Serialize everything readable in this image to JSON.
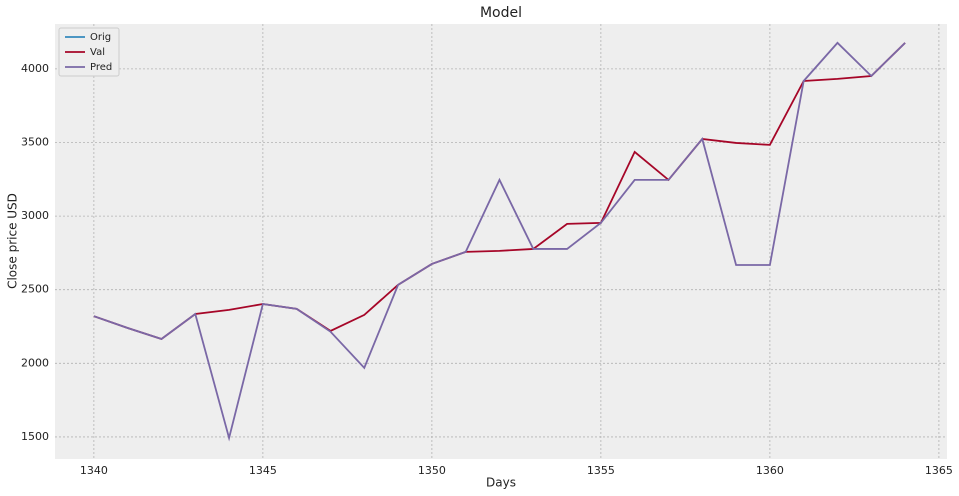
{
  "chart_data": {
    "type": "line",
    "title": "Model",
    "x_label": "Days",
    "y_label": "Close price USD",
    "x": [
      1340,
      1341,
      1342,
      1343,
      1344,
      1345,
      1346,
      1347,
      1348,
      1349,
      1350,
      1351,
      1352,
      1353,
      1354,
      1355,
      1356,
      1357,
      1358,
      1359,
      1360,
      1361,
      1362,
      1363,
      1364
    ],
    "series": [
      {
        "name": "Orig",
        "color": "#348abd",
        "values": [
          null,
          null,
          null,
          null,
          null,
          null,
          null,
          null,
          null,
          null,
          null,
          null,
          null,
          null,
          null,
          null,
          null,
          null,
          null,
          null,
          null,
          null,
          null,
          null,
          null
        ]
      },
      {
        "name": "Val",
        "color": "#a60628",
        "values": [
          2320,
          2240,
          2165,
          2335,
          2363,
          2403,
          2370,
          2220,
          2329,
          2533,
          2675,
          2757,
          2764,
          2777,
          2947,
          2954,
          3436,
          3246,
          3524,
          3497,
          3484,
          3918,
          3932,
          3952,
          4177
        ]
      },
      {
        "name": "Pred",
        "color": "#7a68a6",
        "values": [
          2320,
          2240,
          2165,
          2335,
          1493,
          2403,
          2370,
          2215,
          1969,
          2533,
          2675,
          2757,
          3246,
          2777,
          2777,
          2954,
          3246,
          3246,
          3524,
          2668,
          2668,
          3918,
          4177,
          3952,
          4177
        ]
      }
    ],
    "xlim": [
      1338.85,
      1365.24
    ],
    "ylim": [
      1350,
      4305
    ],
    "xticks": [
      1340,
      1345,
      1350,
      1355,
      1360,
      1365
    ],
    "yticks": [
      1500,
      2000,
      2500,
      3000,
      3500,
      4000
    ],
    "grid": true,
    "legend": "upper left"
  }
}
